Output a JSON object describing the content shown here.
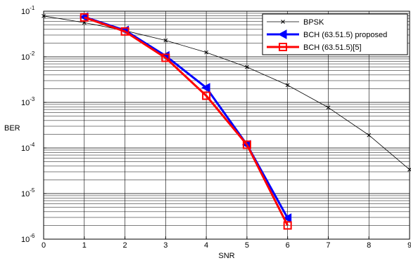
{
  "chart_data": {
    "type": "line",
    "title": "",
    "xlabel": "SNR",
    "ylabel": "BER",
    "xlim": [
      0,
      9
    ],
    "ylim": [
      1e-06,
      0.1
    ],
    "yscale": "log",
    "grid": true,
    "legend": "top-right",
    "x_ticks": [
      "0",
      "1",
      "2",
      "3",
      "4",
      "5",
      "6",
      "7",
      "8",
      "9"
    ],
    "y_ticks": [
      {
        "value": 1e-06,
        "base": "10",
        "exp": "-6"
      },
      {
        "value": 1e-05,
        "base": "10",
        "exp": "-5"
      },
      {
        "value": 0.0001,
        "base": "10",
        "exp": "-4"
      },
      {
        "value": 0.001,
        "base": "10",
        "exp": "-3"
      },
      {
        "value": 0.01,
        "base": "10",
        "exp": "-2"
      },
      {
        "value": 0.1,
        "base": "10",
        "exp": "-1"
      }
    ],
    "series": [
      {
        "name": "BPSK",
        "color": "#000000",
        "marker": "x",
        "x": [
          0,
          1,
          2,
          3,
          4,
          5,
          6,
          7,
          8,
          9
        ],
        "y": [
          0.0786,
          0.0563,
          0.0375,
          0.0229,
          0.0125,
          0.00595,
          0.00239,
          0.000773,
          0.000191,
          3.36e-05
        ]
      },
      {
        "name": "BCH (63.51.5) proposed",
        "color": "#0000ff",
        "marker": "triangle-left",
        "x": [
          1,
          2,
          3,
          4,
          5,
          6
        ],
        "y": [
          0.075,
          0.038,
          0.0105,
          0.0021,
          0.000118,
          2.9e-06
        ]
      },
      {
        "name": "BCH (63.51.5)[5]",
        "color": "#ff0000",
        "marker": "square",
        "x": [
          1,
          2,
          3,
          4,
          5,
          6
        ],
        "y": [
          0.073,
          0.036,
          0.0095,
          0.0014,
          0.000118,
          2e-06
        ]
      }
    ]
  }
}
